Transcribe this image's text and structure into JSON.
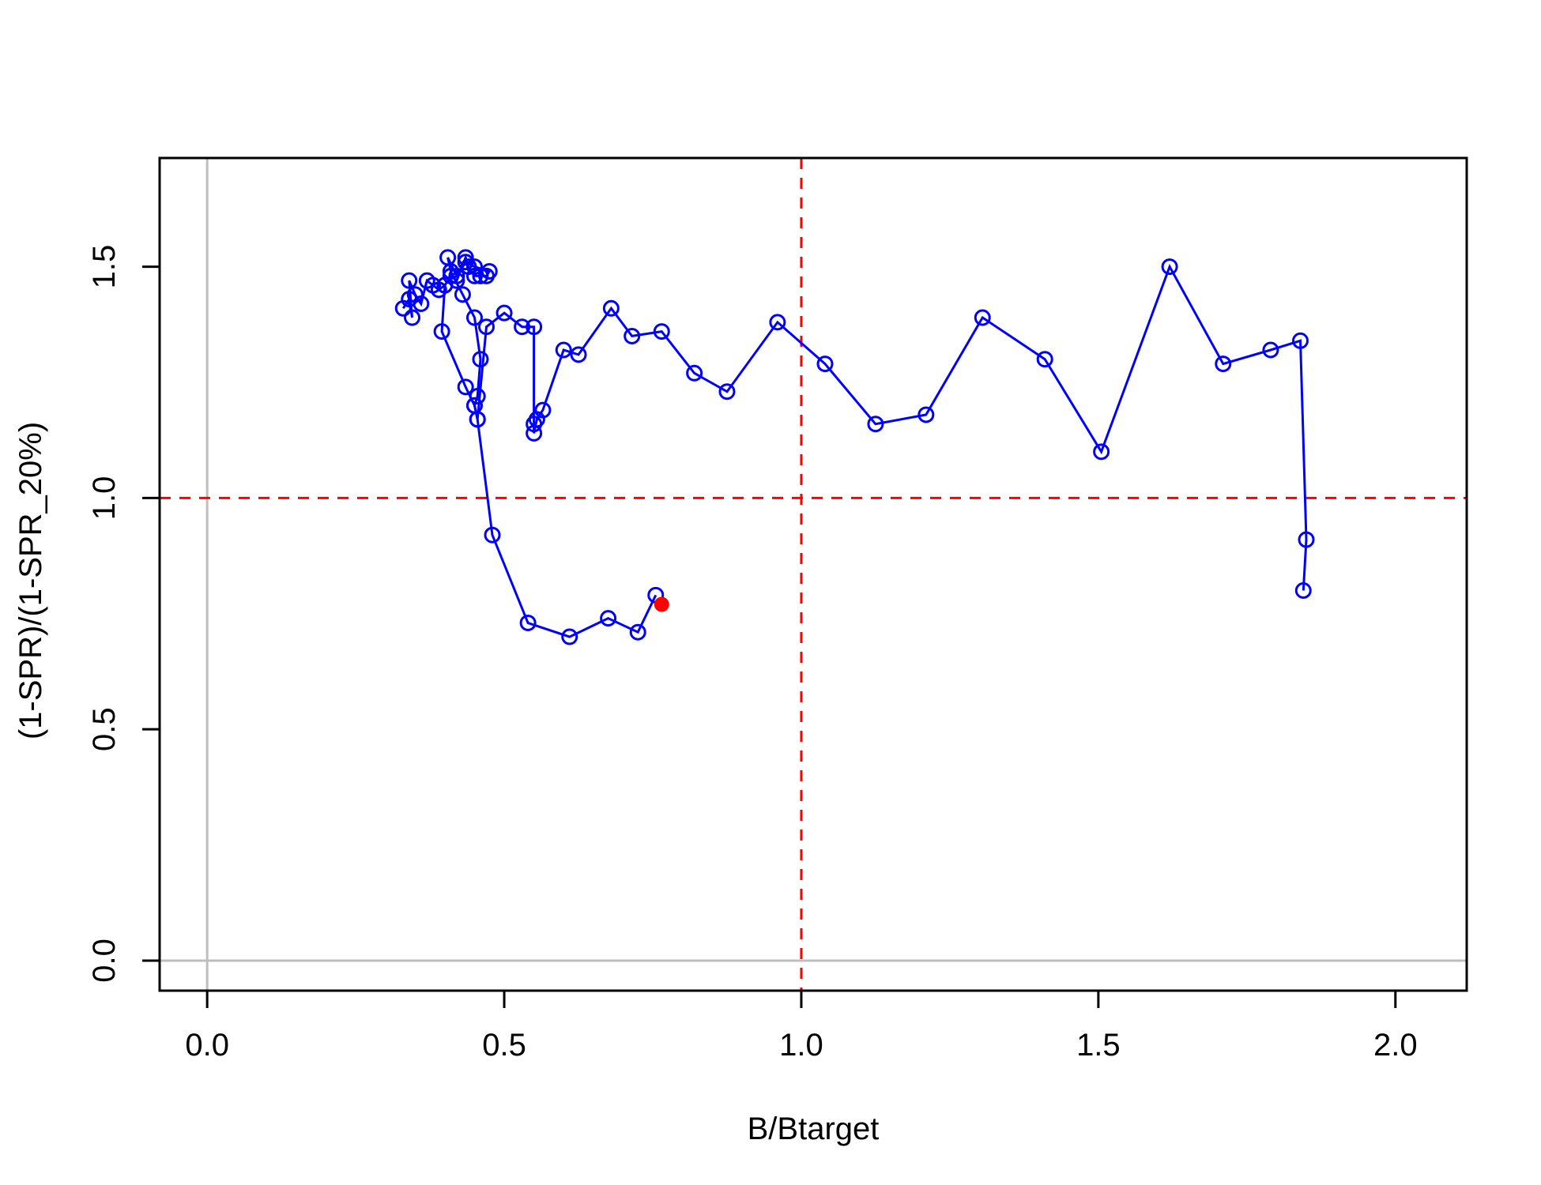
{
  "chart_data": {
    "type": "scatter",
    "title": "",
    "xlabel": "B/Btarget",
    "ylabel": "(1-SPR)/(1-SPR_20%)",
    "xlim": [
      -0.08,
      2.12
    ],
    "ylim": [
      -0.065,
      1.735
    ],
    "x_ticks": [
      "0.0",
      "0.5",
      "1.0",
      "1.5",
      "2.0"
    ],
    "y_ticks": [
      "0.0",
      "0.5",
      "1.0",
      "1.5"
    ],
    "x_tick_values": [
      0.0,
      0.5,
      1.0,
      1.5,
      2.0
    ],
    "y_tick_values": [
      0.0,
      0.5,
      1.0,
      1.5
    ],
    "reference_lines": {
      "vertical_x": 1.0,
      "horizontal_y": 1.0,
      "color": "#ff0000",
      "style": "dashed"
    },
    "zero_lines_color": "#bebebe",
    "grid": false,
    "series": [
      {
        "color": "#0000ff",
        "marker": "open-circle",
        "points": [
          [
            0.33,
            1.41
          ],
          [
            0.34,
            1.43
          ],
          [
            0.345,
            1.39
          ],
          [
            0.34,
            1.47
          ],
          [
            0.35,
            1.44
          ],
          [
            0.36,
            1.42
          ],
          [
            0.37,
            1.47
          ],
          [
            0.38,
            1.46
          ],
          [
            0.39,
            1.45
          ],
          [
            0.4,
            1.46
          ],
          [
            0.41,
            1.48
          ],
          [
            0.42,
            1.47
          ],
          [
            0.435,
            1.52
          ],
          [
            0.44,
            1.5
          ],
          [
            0.45,
            1.48
          ],
          [
            0.46,
            1.48
          ],
          [
            0.47,
            1.48
          ],
          [
            0.475,
            1.49
          ],
          [
            0.45,
            1.5
          ],
          [
            0.435,
            1.51
          ],
          [
            0.42,
            1.48
          ],
          [
            0.405,
            1.52
          ],
          [
            0.41,
            1.49
          ],
          [
            0.43,
            1.44
          ],
          [
            0.45,
            1.39
          ],
          [
            0.46,
            1.3
          ],
          [
            0.455,
            1.22
          ],
          [
            0.45,
            1.2
          ],
          [
            0.455,
            1.17
          ],
          [
            0.47,
            1.37
          ],
          [
            0.5,
            1.4
          ],
          [
            0.53,
            1.37
          ],
          [
            0.55,
            1.37
          ],
          [
            0.55,
            1.16
          ],
          [
            0.55,
            1.14
          ],
          [
            0.555,
            1.17
          ],
          [
            0.565,
            1.19
          ],
          [
            0.6,
            1.32
          ],
          [
            0.625,
            1.31
          ],
          [
            0.68,
            1.41
          ],
          [
            0.715,
            1.35
          ],
          [
            0.765,
            1.36
          ],
          [
            0.82,
            1.27
          ],
          [
            0.875,
            1.23
          ],
          [
            0.96,
            1.38
          ],
          [
            1.04,
            1.29
          ],
          [
            1.125,
            1.16
          ],
          [
            1.21,
            1.18
          ],
          [
            1.305,
            1.39
          ],
          [
            1.41,
            1.3
          ],
          [
            1.505,
            1.1
          ],
          [
            1.62,
            1.5
          ],
          [
            1.71,
            1.29
          ],
          [
            1.79,
            1.32
          ],
          [
            1.84,
            1.34
          ],
          [
            1.85,
            0.91
          ],
          [
            1.845,
            0.8
          ]
        ]
      },
      {
        "color": "#0000ff",
        "marker": "open-circle",
        "points": [
          [
            0.4,
            1.46
          ],
          [
            0.395,
            1.36
          ],
          [
            0.435,
            1.24
          ],
          [
            0.45,
            1.2
          ],
          [
            0.455,
            1.17
          ],
          [
            0.48,
            0.92
          ],
          [
            0.54,
            0.73
          ],
          [
            0.61,
            0.7
          ],
          [
            0.675,
            0.74
          ],
          [
            0.725,
            0.71
          ],
          [
            0.755,
            0.79
          ]
        ]
      }
    ],
    "current_point": {
      "x": 0.765,
      "y": 0.77,
      "color": "#ff0000"
    }
  }
}
